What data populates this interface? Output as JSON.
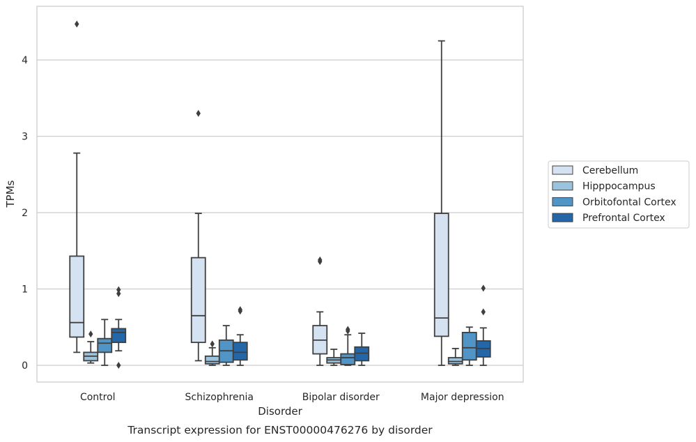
{
  "chart_data": {
    "type": "box",
    "caption": "Transcript expression for ENST00000476276 by disorder",
    "xlabel": "Disorder",
    "ylabel": "TPMs",
    "ylim": [
      -0.22,
      4.7
    ],
    "yticks": [
      0,
      1,
      2,
      3,
      4
    ],
    "grid": "horizontal",
    "legend_position": "right",
    "categories": [
      "Control",
      "Schizophrenia",
      "Bipolar disorder",
      "Major depression"
    ],
    "series": [
      {
        "name": "Cerebellum",
        "color": "#d4e2f1",
        "boxes": [
          {
            "whisker_low": 0.17,
            "q1": 0.37,
            "median": 0.56,
            "q3": 1.43,
            "whisker_high": 2.78,
            "outliers": [
              4.47
            ]
          },
          {
            "whisker_low": 0.06,
            "q1": 0.3,
            "median": 0.65,
            "q3": 1.41,
            "whisker_high": 1.99,
            "outliers": [
              3.3
            ]
          },
          {
            "whisker_low": 0.0,
            "q1": 0.15,
            "median": 0.33,
            "q3": 0.52,
            "whisker_high": 0.7,
            "outliers": [
              1.36,
              1.38
            ]
          },
          {
            "whisker_low": 0.0,
            "q1": 0.38,
            "median": 0.62,
            "q3": 1.99,
            "whisker_high": 4.25,
            "outliers": []
          }
        ]
      },
      {
        "name": "Hipppocampus",
        "color": "#9cc3de",
        "boxes": [
          {
            "whisker_low": 0.03,
            "q1": 0.06,
            "median": 0.12,
            "q3": 0.17,
            "whisker_high": 0.31,
            "outliers": [
              0.41
            ]
          },
          {
            "whisker_low": 0.0,
            "q1": 0.02,
            "median": 0.05,
            "q3": 0.12,
            "whisker_high": 0.23,
            "outliers": [
              0.28
            ]
          },
          {
            "whisker_low": 0.0,
            "q1": 0.03,
            "median": 0.07,
            "q3": 0.1,
            "whisker_high": 0.21,
            "outliers": []
          },
          {
            "whisker_low": 0.0,
            "q1": 0.02,
            "median": 0.05,
            "q3": 0.1,
            "whisker_high": 0.22,
            "outliers": []
          }
        ]
      },
      {
        "name": "Orbitofontal Cortex",
        "color": "#5095c6",
        "boxes": [
          {
            "whisker_low": 0.0,
            "q1": 0.17,
            "median": 0.29,
            "q3": 0.35,
            "whisker_high": 0.6,
            "outliers": []
          },
          {
            "whisker_low": 0.0,
            "q1": 0.04,
            "median": 0.19,
            "q3": 0.33,
            "whisker_high": 0.52,
            "outliers": []
          },
          {
            "whisker_low": 0.0,
            "q1": 0.01,
            "median": 0.1,
            "q3": 0.15,
            "whisker_high": 0.4,
            "outliers": [
              0.45,
              0.47
            ]
          },
          {
            "whisker_low": 0.0,
            "q1": 0.07,
            "median": 0.23,
            "q3": 0.43,
            "whisker_high": 0.5,
            "outliers": []
          }
        ]
      },
      {
        "name": "Prefrontal Cortex",
        "color": "#2467a8",
        "boxes": [
          {
            "whisker_low": 0.19,
            "q1": 0.3,
            "median": 0.43,
            "q3": 0.48,
            "whisker_high": 0.6,
            "outliers": [
              0.94,
              0.99,
              0.0
            ]
          },
          {
            "whisker_low": 0.0,
            "q1": 0.07,
            "median": 0.17,
            "q3": 0.3,
            "whisker_high": 0.4,
            "outliers": [
              0.71,
              0.73
            ]
          },
          {
            "whisker_low": 0.0,
            "q1": 0.06,
            "median": 0.16,
            "q3": 0.24,
            "whisker_high": 0.42,
            "outliers": []
          },
          {
            "whisker_low": 0.0,
            "q1": 0.11,
            "median": 0.22,
            "q3": 0.32,
            "whisker_high": 0.49,
            "outliers": [
              0.7,
              1.01
            ]
          }
        ]
      }
    ]
  }
}
